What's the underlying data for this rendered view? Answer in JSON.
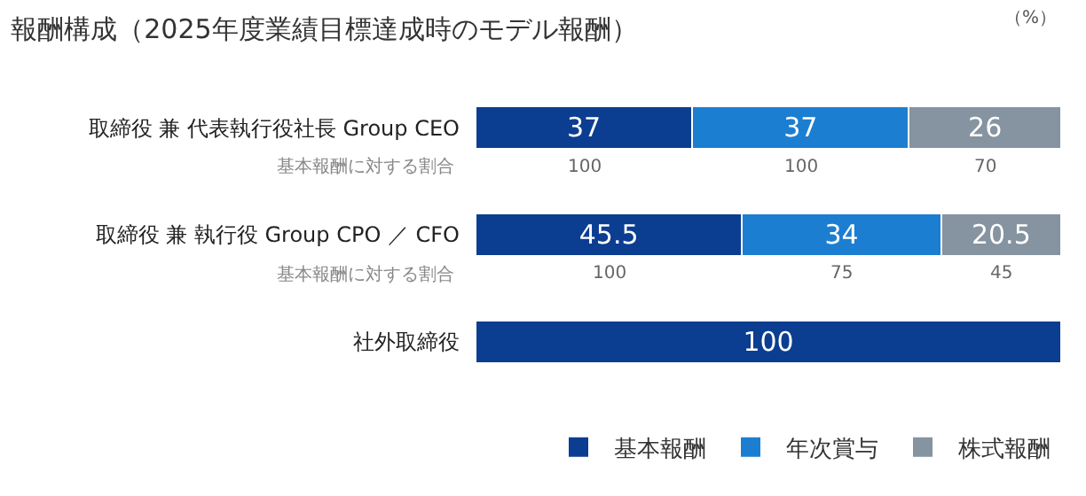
{
  "chart_data": {
    "type": "bar",
    "orientation": "horizontal",
    "stacked": true,
    "data_labels": true,
    "legend": "bottom right",
    "title": "報酬構成（2025年度業績目標達成時のモデル報酬）",
    "categories": [
      "取締役 兼 代表執行役社長 Group CEO",
      "取締役 兼 執行役 Group CPO ／ CFO",
      "社外取締役"
    ],
    "series": [
      {
        "name": "基本報酬",
        "color": "#0b3d91",
        "values": [
          37,
          45.5,
          100
        ]
      },
      {
        "name": "年次賞与",
        "color": "#1c7ed1",
        "values": [
          37,
          34,
          null
        ]
      },
      {
        "name": "株式報酬",
        "color": "#8693a0",
        "values": [
          26,
          20.5,
          null
        ]
      }
    ],
    "annotations": [
      "（%）",
      "基本報酬に対する割合",
      "100",
      "100",
      "70",
      "基本報酬に対する割合",
      "100",
      "75",
      "45"
    ]
  }
}
